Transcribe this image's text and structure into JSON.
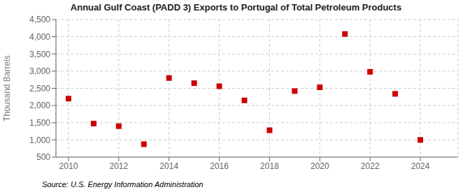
{
  "chart_data": {
    "type": "scatter",
    "title": "Annual Gulf Coast (PADD 3) Exports to Portugal of Total Petroleum Products",
    "ylabel": "Thousand Barrels",
    "annotations": [
      "Source: U.S. Energy Information Administration"
    ],
    "x": [
      2010,
      2011,
      2012,
      2013,
      2014,
      2015,
      2016,
      2017,
      2018,
      2019,
      2020,
      2021,
      2022,
      2023,
      2024
    ],
    "values": [
      2200,
      1475,
      1400,
      875,
      2800,
      2650,
      2560,
      2150,
      1280,
      2420,
      2530,
      4080,
      2980,
      2340,
      1000
    ],
    "color": "#cc0000",
    "marker": "square",
    "grid": true,
    "xlim": [
      2009.5,
      2025.5
    ],
    "xticks": [
      2010,
      2012,
      2014,
      2016,
      2018,
      2020,
      2022,
      2024
    ],
    "ylim": [
      500,
      4500
    ],
    "yticks": [
      500,
      {
        "value": 1000,
        "label": "1,000"
      },
      {
        "value": 1500,
        "label": "1,500"
      },
      {
        "value": 2000,
        "label": "2,000"
      },
      {
        "value": 2500,
        "label": "2,500"
      },
      {
        "value": 3000,
        "label": "3,000"
      },
      {
        "value": 3500,
        "label": "3,500"
      },
      {
        "value": 4000,
        "label": "4,000"
      },
      {
        "value": 4500,
        "label": "4,500"
      }
    ]
  }
}
